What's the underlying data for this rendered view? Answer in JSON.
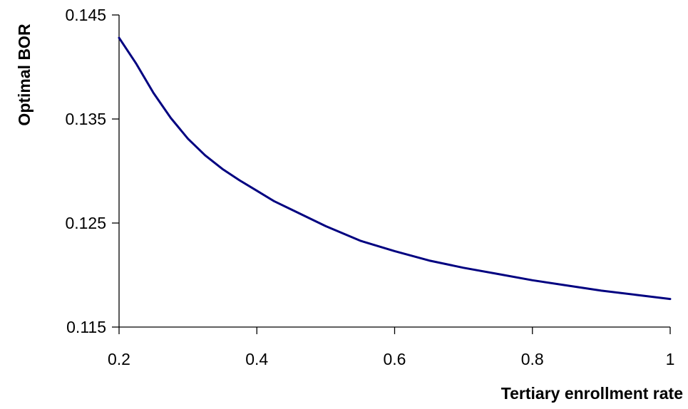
{
  "chart_data": {
    "type": "line",
    "title": "",
    "xlabel": "Tertiary enrollment rate",
    "ylabel": "Optimal BOR",
    "xlim": [
      0.2,
      1
    ],
    "ylim": [
      0.115,
      0.145
    ],
    "x_ticks": [
      0.2,
      0.4,
      0.6,
      0.8,
      1
    ],
    "x_tick_labels": [
      "0.2",
      "0.4",
      "0.6",
      "0.8",
      "1"
    ],
    "y_ticks": [
      0.115,
      0.125,
      0.135,
      0.145
    ],
    "y_tick_labels": [
      "0.115",
      "0.125",
      "0.135",
      "0.145"
    ],
    "grid": false,
    "legend": "none",
    "series": [
      {
        "color": "#000080",
        "x": [
          0.2,
          0.225,
          0.25,
          0.275,
          0.3,
          0.325,
          0.35,
          0.375,
          0.4,
          0.425,
          0.45,
          0.5,
          0.55,
          0.6,
          0.65,
          0.7,
          0.75,
          0.8,
          0.85,
          0.9,
          0.95,
          1.0
        ],
        "y": [
          0.1428,
          0.1403,
          0.1375,
          0.1351,
          0.1331,
          0.1315,
          0.1302,
          0.1291,
          0.1281,
          0.1271,
          0.1263,
          0.1247,
          0.1233,
          0.1223,
          0.1214,
          0.1207,
          0.1201,
          0.1195,
          0.119,
          0.1185,
          0.1181,
          0.1177
        ]
      }
    ]
  }
}
